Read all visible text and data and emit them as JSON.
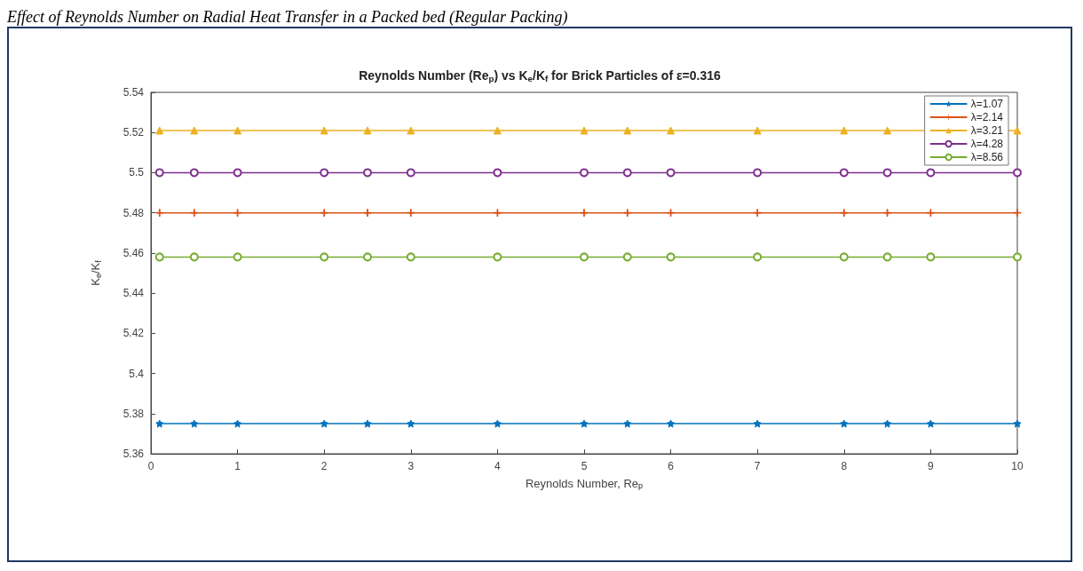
{
  "chart_data": {
    "type": "line",
    "title": "Reynolds Number (Re$_{p}$) vs K$_{e}$/K$_{f}$ for Brick Particles of ε=0.316",
    "xlabel": "Reynolds Number, Re$_{p}$",
    "ylabel": "K$_{e}$/K$_{f}$",
    "annotations": [
      "Effect of Reynolds Number on Radial Heat Transfer in a Packed bed (Regular Packing)"
    ],
    "x": [
      0.1,
      0.5,
      1,
      2,
      2.5,
      3,
      4,
      5,
      5.5,
      6,
      7,
      8,
      8.5,
      9,
      10
    ],
    "series": [
      {
        "name": "λ=1.07",
        "color": "#0072bd",
        "marker": "star",
        "values": [
          5.375,
          5.375,
          5.375,
          5.375,
          5.375,
          5.375,
          5.375,
          5.375,
          5.375,
          5.375,
          5.375,
          5.375,
          5.375,
          5.375,
          5.375
        ]
      },
      {
        "name": "λ=2.14",
        "color": "#d95319",
        "marker": "cross",
        "values": [
          5.48,
          5.48,
          5.48,
          5.48,
          5.48,
          5.48,
          5.48,
          5.48,
          5.48,
          5.48,
          5.48,
          5.48,
          5.48,
          5.48,
          5.48
        ]
      },
      {
        "name": "λ=3.21",
        "color": "#edb120",
        "marker": "triangle",
        "values": [
          5.521,
          5.521,
          5.521,
          5.521,
          5.521,
          5.521,
          5.521,
          5.521,
          5.521,
          5.521,
          5.521,
          5.521,
          5.521,
          null,
          5.521
        ]
      },
      {
        "name": "λ=4.28",
        "color": "#7e2f8e",
        "marker": "circle",
        "values": [
          5.5,
          5.5,
          5.5,
          5.5,
          5.5,
          5.5,
          5.5,
          5.5,
          5.5,
          5.5,
          5.5,
          5.5,
          5.5,
          5.5,
          5.5
        ]
      },
      {
        "name": "λ=8.56",
        "color": "#77ac30",
        "marker": "circle",
        "values": [
          5.458,
          5.458,
          5.458,
          5.458,
          5.458,
          5.458,
          5.458,
          5.458,
          5.458,
          5.458,
          5.458,
          5.458,
          5.458,
          5.458,
          5.458
        ]
      }
    ],
    "xlim": [
      0,
      10
    ],
    "xticks": [
      0,
      1,
      2,
      3,
      4,
      5,
      6,
      7,
      8,
      9,
      10
    ],
    "ylim": [
      5.36,
      5.54
    ],
    "yticks": [
      5.36,
      5.38,
      5.4,
      5.42,
      5.44,
      5.46,
      5.48,
      5.5,
      5.52,
      5.54
    ],
    "grid": false,
    "legend": "top right",
    "line_style": "solid"
  }
}
